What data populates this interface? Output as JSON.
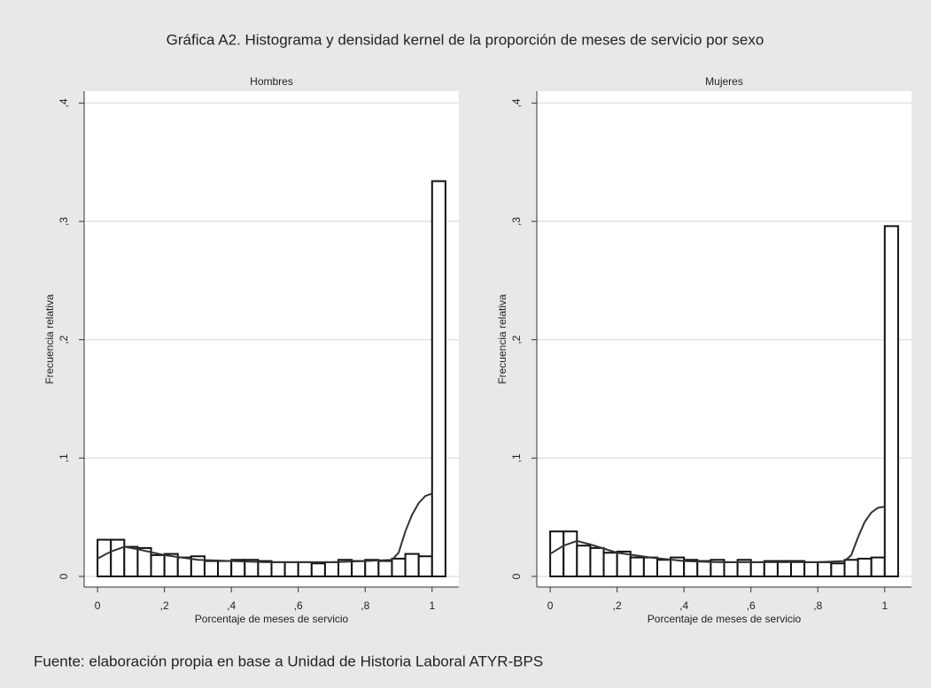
{
  "title": "Gráfica A2. Histograma y densidad kernel de la proporción de meses de servicio por sexo",
  "footnote": "Fuente: elaboración propia en base a Unidad de Historia Laboral ATYR-BPS",
  "chart_data": [
    {
      "type": "histogram",
      "title": "Hombres",
      "x_label": "Porcentaje de meses de servicio",
      "y_label": "Frecuencia relativa",
      "bins": [
        0,
        0.04,
        0.08,
        0.12,
        0.16,
        0.2,
        0.24,
        0.28,
        0.32,
        0.36,
        0.4,
        0.44,
        0.48,
        0.52,
        0.56,
        0.6,
        0.64,
        0.68,
        0.72,
        0.76,
        0.8,
        0.84,
        0.88,
        0.92,
        0.96,
        1.0,
        1.04
      ],
      "values": [
        0.031,
        0.031,
        0.025,
        0.024,
        0.018,
        0.019,
        0.016,
        0.017,
        0.013,
        0.013,
        0.014,
        0.014,
        0.013,
        0.012,
        0.012,
        0.012,
        0.011,
        0.012,
        0.014,
        0.013,
        0.014,
        0.013,
        0.015,
        0.019,
        0.017,
        0.334
      ],
      "color": "#ffffff",
      "edge_color": "#111111",
      "density": {
        "color": "#333333",
        "x": [
          0,
          0.04,
          0.08,
          0.12,
          0.2,
          0.3,
          0.4,
          0.5,
          0.6,
          0.7,
          0.8,
          0.88,
          0.9,
          0.92,
          0.94,
          0.96,
          0.98,
          1.0
        ],
        "values": [
          0.015,
          0.021,
          0.025,
          0.023,
          0.018,
          0.014,
          0.013,
          0.012,
          0.012,
          0.012,
          0.013,
          0.014,
          0.02,
          0.038,
          0.052,
          0.062,
          0.068,
          0.07
        ]
      },
      "xlim": [
        -0.04,
        1.08
      ],
      "ylim": [
        -0.009,
        0.41
      ],
      "xticks": [
        0,
        {
          "value": 0.2,
          "label": ",2"
        },
        {
          "value": 0.4,
          "label": ",4"
        },
        {
          "value": 0.6,
          "label": ",6"
        },
        {
          "value": 0.8,
          "label": ",8"
        },
        1
      ],
      "yticks": [
        0,
        {
          "value": 0.1,
          "label": ",1"
        },
        {
          "value": 0.2,
          "label": ",2"
        },
        {
          "value": 0.3,
          "label": ",3"
        },
        {
          "value": 0.4,
          "label": ",4"
        }
      ],
      "grid": true
    },
    {
      "type": "histogram",
      "title": "Mujeres",
      "x_label": "Porcentaje de meses de servicio",
      "y_label": "Frecuencia relativa",
      "bins": [
        0,
        0.04,
        0.08,
        0.12,
        0.16,
        0.2,
        0.24,
        0.28,
        0.32,
        0.36,
        0.4,
        0.44,
        0.48,
        0.52,
        0.56,
        0.6,
        0.64,
        0.68,
        0.72,
        0.76,
        0.8,
        0.84,
        0.88,
        0.92,
        0.96,
        1.0,
        1.04
      ],
      "values": [
        0.038,
        0.038,
        0.026,
        0.024,
        0.02,
        0.021,
        0.016,
        0.016,
        0.014,
        0.016,
        0.014,
        0.013,
        0.014,
        0.012,
        0.014,
        0.012,
        0.013,
        0.013,
        0.013,
        0.012,
        0.012,
        0.011,
        0.014,
        0.015,
        0.016,
        0.296
      ],
      "color": "#ffffff",
      "edge_color": "#111111",
      "density": {
        "color": "#333333",
        "x": [
          0,
          0.04,
          0.08,
          0.12,
          0.2,
          0.3,
          0.4,
          0.5,
          0.6,
          0.7,
          0.8,
          0.88,
          0.9,
          0.92,
          0.94,
          0.96,
          0.98,
          1.0
        ],
        "values": [
          0.019,
          0.026,
          0.03,
          0.027,
          0.02,
          0.016,
          0.013,
          0.012,
          0.012,
          0.012,
          0.012,
          0.013,
          0.018,
          0.033,
          0.046,
          0.054,
          0.058,
          0.059
        ]
      },
      "xlim": [
        -0.04,
        1.08
      ],
      "ylim": [
        -0.009,
        0.41
      ],
      "xticks": [
        0,
        {
          "value": 0.2,
          "label": ",2"
        },
        {
          "value": 0.4,
          "label": ",4"
        },
        {
          "value": 0.6,
          "label": ",6"
        },
        {
          "value": 0.8,
          "label": ",8"
        },
        1
      ],
      "yticks": [
        0,
        {
          "value": 0.1,
          "label": ",1"
        },
        {
          "value": 0.2,
          "label": ",2"
        },
        {
          "value": 0.3,
          "label": ",3"
        },
        {
          "value": 0.4,
          "label": ",4"
        }
      ],
      "grid": true
    }
  ]
}
